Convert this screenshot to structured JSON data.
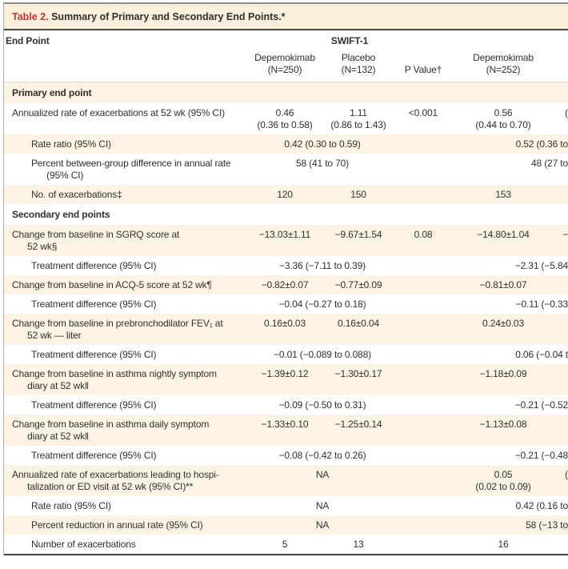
{
  "colors": {
    "title_red": "#bf3a31",
    "row_cream": "#fcf3e4",
    "rule_dark": "#4a4845",
    "frame_gray": "#8f8d8a",
    "text": "#33312e"
  },
  "table": {
    "title_label": "Table 2.",
    "title_text": " Summary of Primary and Secondary End Points.*",
    "header": {
      "endpoint": "End Point",
      "trial1": "SWIFT-1",
      "dep1": "Depemokimab\n(N=250)",
      "pbo1": "Placebo\n(N=132)",
      "pval": "P Value†",
      "dep2": "Depemokimab\n(N=252)"
    },
    "rows": [
      {
        "kind": "section",
        "label": "Primary end point"
      },
      {
        "kind": "cells",
        "label": "Annualized rate of exacerbations at 52 wk (95% CI)",
        "dep1": "0.46\n(0.36 to 0.58)",
        "pbo1": "1.11\n(0.86 to 1.43)",
        "p": "<0.001",
        "dep2": "0.56\n(0.44 to 0.70)",
        "pbo2": "("
      },
      {
        "kind": "span",
        "label": "Rate ratio (95% CI)",
        "s1": "0.42 (0.30 to 0.59)",
        "p": "",
        "s2": "0.52 (0.36 to"
      },
      {
        "kind": "span",
        "label": "Percent between-group difference in annual rate\n      (95% CI)",
        "s1": "58 (41 to 70)",
        "p": "",
        "s2": "48 (27 to"
      },
      {
        "kind": "cells",
        "label": "No. of exacerbations‡",
        "dep1": "120",
        "pbo1": "150",
        "p": "",
        "dep2": "153",
        "pbo2": ""
      },
      {
        "kind": "section",
        "label": "Secondary end points"
      },
      {
        "kind": "cells",
        "label": "Change from baseline in SGRQ score at\n      52 wk§",
        "dep1": "−13.03±1.11",
        "pbo1": "−9.67±1.54",
        "p": "0.08",
        "dep2": "−14.80±1.04",
        "pbo2": "−"
      },
      {
        "kind": "span",
        "label": "Treatment difference (95% CI)",
        "s1": "−3.36 (−7.11 to 0.39)",
        "p": "",
        "s2": "−2.31 (−5.84"
      },
      {
        "kind": "cells",
        "label": "Change from baseline in ACQ-5 score at 52 wk¶",
        "dep1": "−0.82±0.07",
        "pbo1": "−0.77±0.09",
        "p": "",
        "dep2": "−0.81±0.07",
        "pbo2": ""
      },
      {
        "kind": "span",
        "label": "Treatment difference (95% CI)",
        "s1": "−0.04 (−0.27 to 0.18)",
        "p": "",
        "s2": "−0.11 (−0.33"
      },
      {
        "kind": "cells",
        "label": "Change from baseline in prebronchodilator FEV₁ at\n      52 wk — liter",
        "dep1": "0.16±0.03",
        "pbo1": "0.16±0.04",
        "p": "",
        "dep2": "0.24±0.03",
        "pbo2": ""
      },
      {
        "kind": "span",
        "label": "Treatment difference (95% CI)",
        "s1": "−0.01 (−0.089 to 0.088)",
        "p": "",
        "s2": "0.06 (−0.04 t"
      },
      {
        "kind": "cells",
        "label": "Change from baseline in asthma nightly symptom\n      diary at 52 wk‖",
        "dep1": "−1.39±0.12",
        "pbo1": "−1.30±0.17",
        "p": "",
        "dep2": "−1.18±0.09",
        "pbo2": ""
      },
      {
        "kind": "span",
        "label": "Treatment difference (95% CI)",
        "s1": "−0.09 (−0.50 to 0.31)",
        "p": "",
        "s2": "−0.21 (−0.52"
      },
      {
        "kind": "cells",
        "label": "Change from baseline in asthma daily symptom\n      diary at 52 wk‖",
        "dep1": "−1.33±0.10",
        "pbo1": "−1.25±0.14",
        "p": "",
        "dep2": "−1.13±0.08",
        "pbo2": ""
      },
      {
        "kind": "span",
        "label": "Treatment difference (95% CI)",
        "s1": "−0.08 (−0.42 to 0.26)",
        "p": "",
        "s2": "−0.21 (−0.48"
      },
      {
        "kind": "na",
        "label": "Annualized rate of exacerbations leading to hospi-\n      talization or ED visit at 52 wk (95% CI)**",
        "s1": "NA",
        "p": "",
        "dep2": "0.05\n(0.02 to 0.09)",
        "pbo2": "("
      },
      {
        "kind": "span",
        "label": "Rate ratio (95% CI)",
        "s1": "NA",
        "p": "",
        "s2": "0.42 (0.16 to"
      },
      {
        "kind": "span",
        "label": "Percent reduction in annual rate (95% CI)",
        "s1": "NA",
        "p": "",
        "s2": "58 (−13 to"
      },
      {
        "kind": "cells",
        "label": "Number of exacerbations",
        "dep1": "5",
        "pbo1": "13",
        "p": "",
        "dep2": "16",
        "pbo2": ""
      }
    ]
  }
}
